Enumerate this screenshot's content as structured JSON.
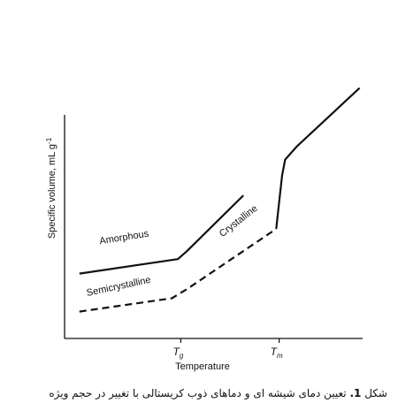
{
  "chart_data": {
    "type": "line",
    "title": "",
    "xlabel": "Temperature",
    "ylabel": "Specific volume, mL g",
    "ylabel_exponent": "-1",
    "xlim": [
      0,
      100
    ],
    "ylim": [
      0,
      100
    ],
    "x_ticks": [
      {
        "label": "T",
        "subscript": "g",
        "x": 39
      },
      {
        "label": "T",
        "subscript": "m",
        "x": 72
      }
    ],
    "grid": false,
    "legend": "none",
    "series": [
      {
        "name": "Amorphous",
        "style": "solid",
        "x": [
          5,
          38,
          41,
          60
        ],
        "y": [
          29,
          35.5,
          39,
          64
        ]
      },
      {
        "name": "Crystalline",
        "style": "solid",
        "x": [
          71,
          72,
          73,
          74,
          78,
          99
        ],
        "y": [
          49,
          61,
          73,
          80,
          86,
          112
        ]
      },
      {
        "name": "Semicrystalline",
        "style": "dashed",
        "x": [
          5,
          36,
          41,
          71
        ],
        "y": [
          12,
          18,
          22,
          49
        ]
      }
    ],
    "annotations": [
      "Amorphous",
      "Semicrystalline",
      "Crystalline"
    ]
  },
  "caption": {
    "prefix": "شکل",
    "number": "1.",
    "text": "تعیین دمای شیشه ای و دماهای ذوب کریستالی با تغییر در حجم ویژه"
  }
}
